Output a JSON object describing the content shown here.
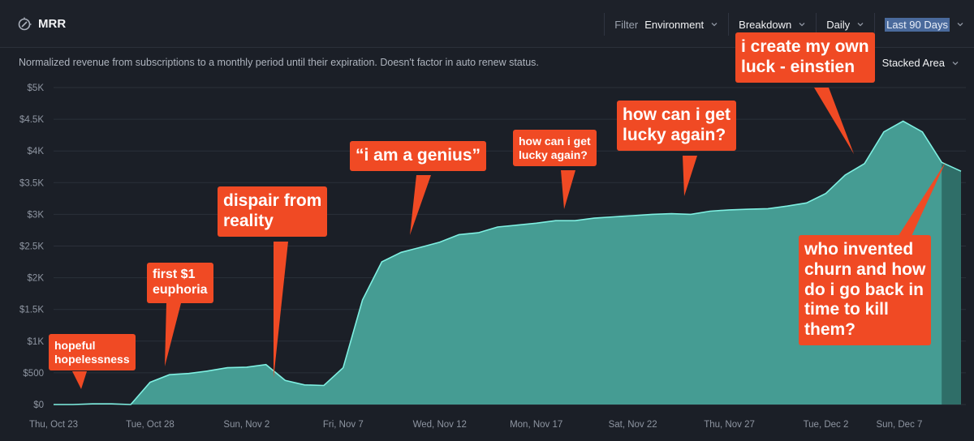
{
  "header": {
    "title": "MRR",
    "filter_label": "Filter",
    "environment_label": "Environment",
    "breakdown_label": "Breakdown",
    "interval_label": "Daily",
    "range_label": "Last 90 Days",
    "description": "Normalized revenue from subscriptions to a monthly period until their expiration. Doesn't factor in auto renew status.",
    "chart_mode_label": "Stacked Area"
  },
  "colors": {
    "area_fill": "#459c93",
    "area_line": "#7ff0e2",
    "callout_bg": "#f04a24",
    "background": "#1b1f27"
  },
  "icons": [
    "mrr-icon",
    "chevron-down-icon"
  ],
  "chart_data": {
    "type": "area",
    "title": "MRR",
    "ylim": [
      0,
      5000
    ],
    "y_ticks": [
      "$0",
      "$500",
      "$1K",
      "$1.5K",
      "$2K",
      "$2.5K",
      "$3K",
      "$3.5K",
      "$4K",
      "$4.5K",
      "$5K"
    ],
    "x_tick_labels": [
      "Thu, Oct 23",
      "Tue, Oct 28",
      "Sun, Nov 2",
      "Fri, Nov 7",
      "Wed, Nov 12",
      "Mon, Nov 17",
      "Sat, Nov 22",
      "Thu, Nov 27",
      "Tue, Dec 2",
      "Sun, Dec 7"
    ],
    "grid": true,
    "x_start_date": "2025-10-23",
    "series": [
      {
        "values": [
          0,
          0,
          10,
          10,
          0,
          350,
          470,
          490,
          530,
          580,
          590,
          630,
          380,
          310,
          300,
          580,
          1650,
          2250,
          2400,
          2480,
          2560,
          2680,
          2710,
          2800,
          2830,
          2860,
          2900,
          2900,
          2940,
          2960,
          2980,
          3000,
          3010,
          3000,
          3050,
          3070,
          3080,
          3090,
          3130,
          3180,
          3330,
          3620,
          3800,
          4300,
          4470,
          4300,
          3820,
          3680
        ]
      }
    ],
    "annotations": [
      {
        "text": "hopeful\nhopelessness",
        "date": "Oct 24"
      },
      {
        "text": "first $1\neuphoria",
        "date": "Oct 29"
      },
      {
        "text": "dispair from\nreality",
        "date": "Nov 3"
      },
      {
        "text": "“i am a genius”",
        "date": "Nov 10"
      },
      {
        "text": "how can i get\nlucky again?",
        "date": "Nov 17"
      },
      {
        "text": "how can i get\nlucky again?",
        "date": "Nov 23"
      },
      {
        "text": "i create my own\nluck - einstien",
        "date": "Dec 1"
      },
      {
        "text": "who invented\nchurn and how\ndo i go back in\ntime to kill\nthem?",
        "date": "Dec 7"
      }
    ]
  }
}
